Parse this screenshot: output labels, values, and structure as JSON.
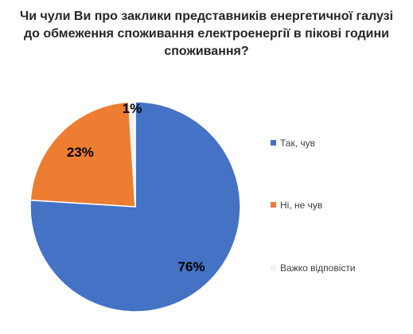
{
  "chart_data": {
    "type": "pie",
    "title_lines": [
      "Чи чули Ви про заклики представників енергетичної галузі",
      "до обмеження споживання електроенергії в пікові години",
      "споживання?"
    ],
    "categories": [
      "Так, чув",
      "Ні, не чув",
      "Важко відповісти"
    ],
    "values": [
      76,
      23,
      1
    ],
    "labels": [
      "76%",
      "23%",
      "1%"
    ],
    "colors": [
      "#4472C4",
      "#ED7D31",
      "#F2F2F2"
    ],
    "legend_position": "right"
  }
}
